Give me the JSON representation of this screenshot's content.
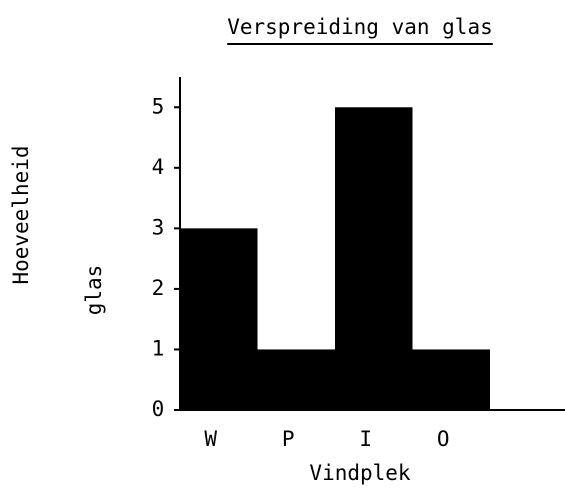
{
  "chart_data": {
    "type": "bar",
    "title": "Verspreiding van glas",
    "ylabel": [
      "Hoeveelheid",
      "glas"
    ],
    "xlabel": "Vindplek",
    "categories": [
      "W",
      "P",
      "I",
      "O"
    ],
    "values": [
      3,
      1,
      5,
      1
    ],
    "color": "#000000",
    "ylim": [
      0,
      5.5
    ],
    "yticks": [
      0,
      1,
      2,
      3,
      4,
      5
    ],
    "grid": false
  }
}
